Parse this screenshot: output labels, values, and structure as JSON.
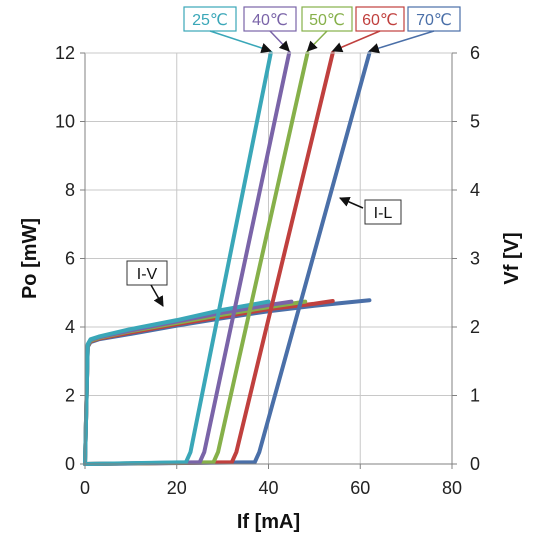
{
  "chart_data": {
    "type": "line",
    "xlabel": "If [mA]",
    "ylabel_left": "Po [mW]",
    "ylabel_right": "Vf [V]",
    "xlim": [
      0,
      80
    ],
    "ylim_left": [
      0,
      12
    ],
    "ylim_right": [
      0,
      6
    ],
    "xticks": [
      "0",
      "20",
      "40",
      "60",
      "80"
    ],
    "yticks_left": [
      "0",
      "2",
      "4",
      "6",
      "8",
      "10",
      "12"
    ],
    "yticks_right": [
      "0",
      "1",
      "2",
      "3",
      "4",
      "5",
      "6"
    ],
    "grid": true,
    "legend_placement": "top",
    "legend": [
      {
        "label": "25℃",
        "color": "#3aa7b8"
      },
      {
        "label": "40℃",
        "color": "#7a64a8"
      },
      {
        "label": "50℃",
        "color": "#86b04a"
      },
      {
        "label": "60℃",
        "color": "#c0403e"
      },
      {
        "label": "70℃",
        "color": "#4a6fa8"
      }
    ],
    "annotations": [
      {
        "text": "I-L"
      },
      {
        "text": "I-V"
      }
    ],
    "series_il": [
      {
        "temp": "25℃",
        "color": "#3aa7b8",
        "x": [
          0,
          22,
          23,
          40.5
        ],
        "y": [
          0,
          0.05,
          0.35,
          12
        ]
      },
      {
        "temp": "40℃",
        "color": "#7a64a8",
        "x": [
          0,
          25,
          26,
          44.5
        ],
        "y": [
          0,
          0.05,
          0.35,
          12
        ]
      },
      {
        "temp": "50℃",
        "color": "#86b04a",
        "x": [
          0,
          28,
          29,
          48.5
        ],
        "y": [
          0,
          0.05,
          0.35,
          12
        ]
      },
      {
        "temp": "60℃",
        "color": "#c0403e",
        "x": [
          0,
          32,
          33,
          54
        ],
        "y": [
          0,
          0.05,
          0.35,
          12
        ]
      },
      {
        "temp": "70℃",
        "color": "#4a6fa8",
        "x": [
          0,
          37,
          38,
          62
        ],
        "y": [
          0,
          0.05,
          0.35,
          12
        ]
      }
    ],
    "series_iv": [
      {
        "temp": "25℃",
        "color": "#3aa7b8",
        "x": [
          0,
          0.6,
          1.2,
          3,
          10,
          20,
          30,
          40
        ],
        "y": [
          0,
          1.75,
          1.82,
          1.86,
          1.97,
          2.1,
          2.25,
          2.37
        ]
      },
      {
        "temp": "40℃",
        "color": "#7a64a8",
        "x": [
          0,
          0.6,
          1.2,
          3,
          10,
          20,
          30,
          40,
          45
        ],
        "y": [
          0,
          1.74,
          1.81,
          1.85,
          1.95,
          2.08,
          2.21,
          2.32,
          2.37
        ]
      },
      {
        "temp": "50℃",
        "color": "#86b04a",
        "x": [
          0,
          0.6,
          1.2,
          3,
          10,
          20,
          30,
          40,
          48
        ],
        "y": [
          0,
          1.73,
          1.8,
          1.84,
          1.94,
          2.06,
          2.18,
          2.29,
          2.37
        ]
      },
      {
        "temp": "60℃",
        "color": "#c0403e",
        "x": [
          0,
          0.6,
          1.2,
          3,
          10,
          20,
          30,
          40,
          50,
          54
        ],
        "y": [
          0,
          1.72,
          1.79,
          1.83,
          1.92,
          2.04,
          2.15,
          2.26,
          2.34,
          2.38
        ]
      },
      {
        "temp": "70℃",
        "color": "#4a6fa8",
        "x": [
          0,
          0.6,
          1.2,
          3,
          10,
          20,
          30,
          40,
          50,
          62
        ],
        "y": [
          0,
          1.71,
          1.78,
          1.82,
          1.9,
          2.02,
          2.13,
          2.23,
          2.31,
          2.39
        ]
      }
    ]
  }
}
